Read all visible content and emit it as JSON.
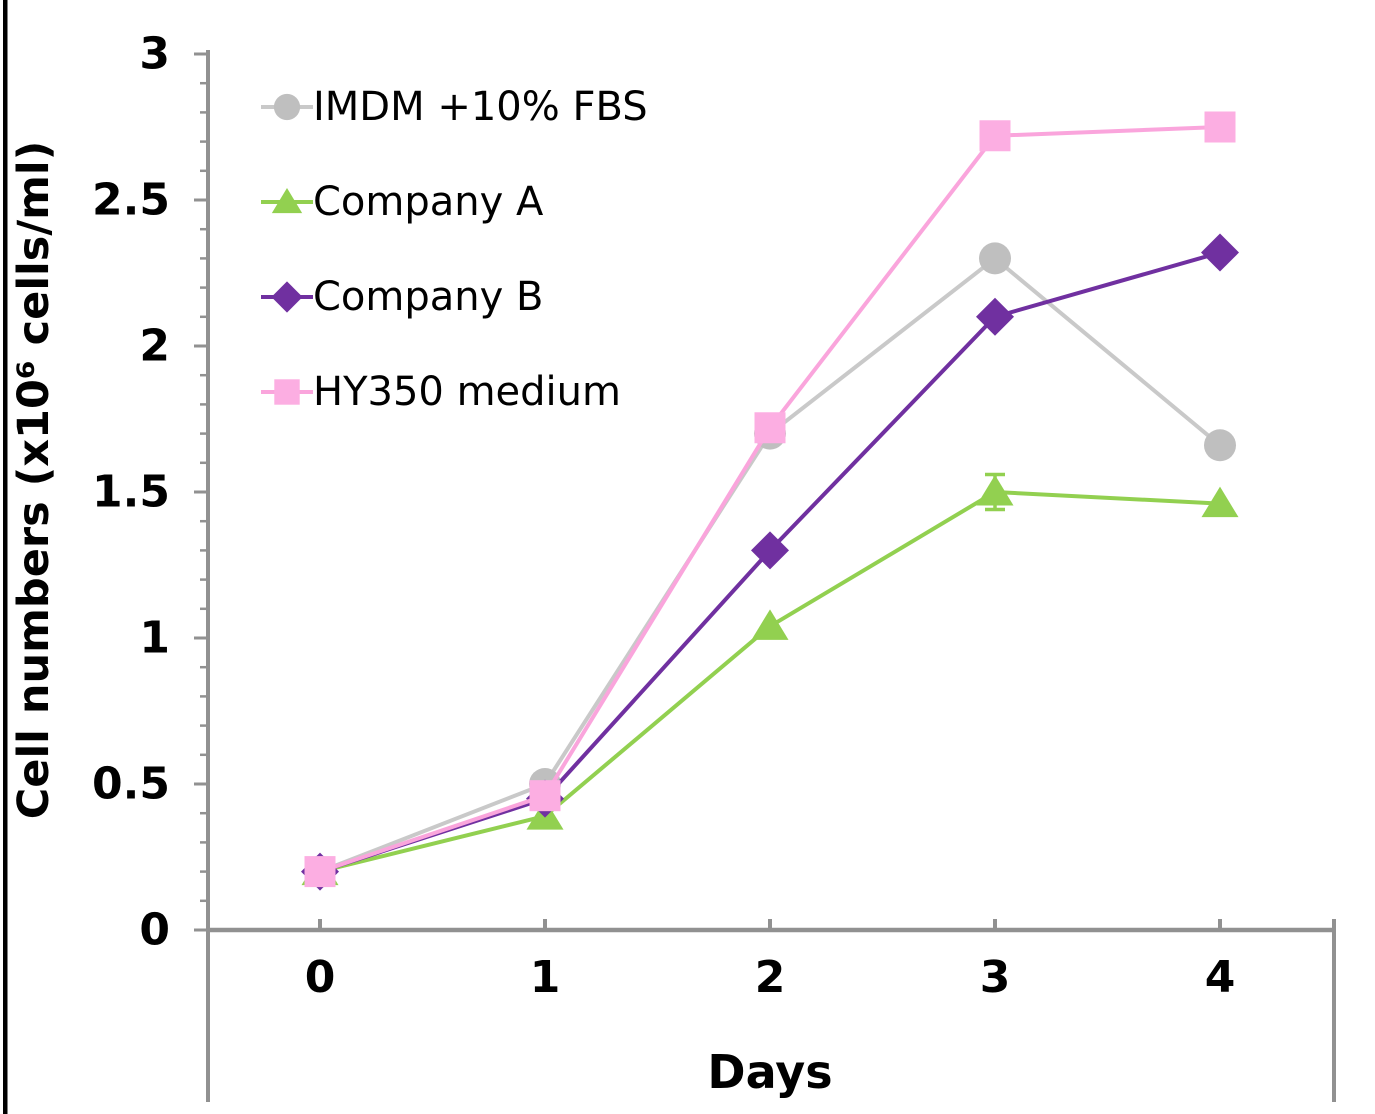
{
  "figure": {
    "background": "#ffffff",
    "left_border_color": "#000000",
    "axis_color": "#919191",
    "text_color": "#000000"
  },
  "chart_data": {
    "type": "line",
    "title": "",
    "xlabel": "Days",
    "ylabel": "Cell numbers (x10⁶ cells/ml)",
    "x": [
      0,
      1,
      2,
      3,
      4
    ],
    "x_ticklabels": [
      "0",
      "1",
      "2",
      "3",
      "4"
    ],
    "xlim": [
      -0.5,
      4.5
    ],
    "y_ticks": [
      0,
      0.5,
      1,
      1.5,
      2,
      2.5,
      3
    ],
    "y_ticklabels": [
      "0",
      "0.5",
      "1",
      "1.5",
      "2",
      "2.5",
      "3"
    ],
    "ylim": [
      0,
      3
    ],
    "y_minor_step": 0.1,
    "grid": false,
    "legend_position": "top-left-inside",
    "series": [
      {
        "name": "IMDM +10% FBS",
        "marker": "circle",
        "line_color": "#C9C9C9",
        "marker_color": "#BFBFBF",
        "values": [
          0.2,
          0.5,
          1.7,
          2.3,
          1.66
        ]
      },
      {
        "name": "Company A",
        "marker": "triangle",
        "line_color": "#92D050",
        "marker_color": "#92D050",
        "values": [
          0.2,
          0.39,
          1.04,
          1.5,
          1.46
        ],
        "error_bars": [
          null,
          null,
          null,
          0.06,
          null
        ]
      },
      {
        "name": "Company B",
        "marker": "diamond",
        "line_color": "#7030A0",
        "marker_color": "#7030A0",
        "values": [
          0.2,
          0.45,
          1.3,
          2.1,
          2.32
        ]
      },
      {
        "name": "HY350 medium",
        "marker": "square",
        "line_color": "#FAA5DC",
        "marker_color": "#FCAEE2",
        "values": [
          0.2,
          0.46,
          1.72,
          2.72,
          2.75
        ]
      }
    ]
  }
}
